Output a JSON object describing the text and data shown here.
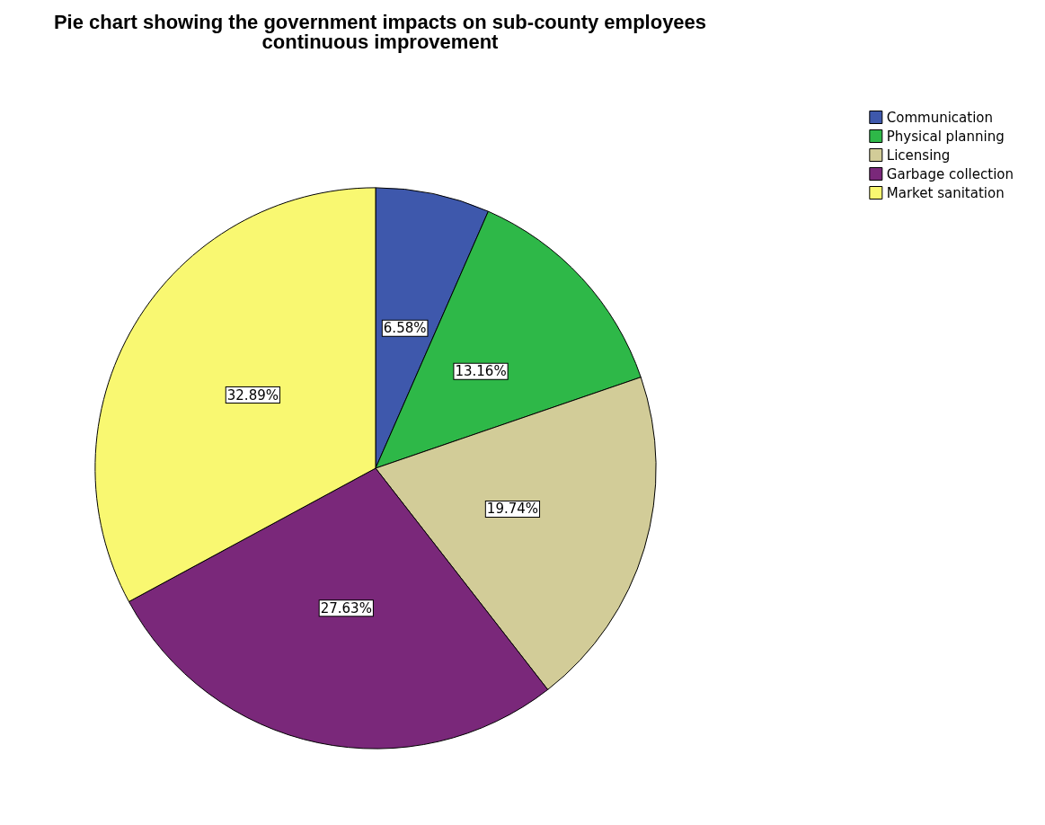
{
  "chart_data": {
    "type": "pie",
    "title": "Pie chart showing the government impacts on sub-county employees\ncontinuous improvement",
    "categories": [
      "Communication",
      "Physical planning",
      "Licensing",
      "Garbage collection",
      "Market sanitation"
    ],
    "values": [
      6.58,
      13.16,
      19.74,
      27.63,
      32.89
    ],
    "colors": [
      "#3e58ac",
      "#2eb848",
      "#d2cc98",
      "#7a287a",
      "#f9f871"
    ],
    "value_labels": [
      "6.58%",
      "13.16%",
      "19.74%",
      "27.63%",
      "32.89%"
    ],
    "legend": "top right"
  }
}
